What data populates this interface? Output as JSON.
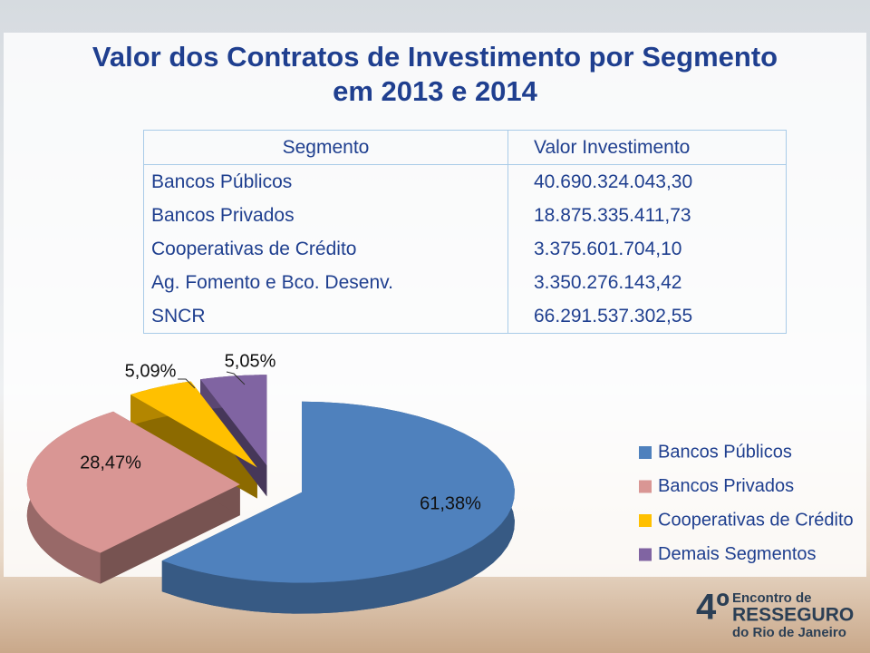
{
  "title": [
    "Valor dos Contratos de Investimento por Segmento",
    "em 2013 e 2014"
  ],
  "table": {
    "header": [
      "Segmento",
      "Valor Investimento"
    ],
    "rows": [
      [
        "Bancos Públicos",
        "40.690.324.043,30"
      ],
      [
        "Bancos Privados",
        "18.875.335.411,73"
      ],
      [
        "Cooperativas de Crédito",
        "3.375.601.704,10"
      ],
      [
        "Ag. Fomento e Bco. Desenv.",
        "3.350.276.143,42"
      ],
      [
        "SNCR",
        "66.291.537.302,55"
      ]
    ]
  },
  "chart_data": {
    "type": "pie",
    "categories": [
      "Bancos Públicos",
      "Bancos Privados",
      "Cooperativas de Crédito",
      "Demais Segmentos"
    ],
    "values": [
      61.38,
      28.47,
      5.09,
      5.05
    ],
    "value_labels": [
      "61,38%",
      "28,47%",
      "5,09%",
      "5,05%"
    ],
    "colors": [
      "#4f81bd",
      "#d99694",
      "#ffc000",
      "#8064a2"
    ],
    "legend": "right"
  },
  "logo": {
    "number": "4º",
    "lines": [
      "Encontro de",
      "RESSEGURO",
      "do Rio de Janeiro"
    ]
  }
}
